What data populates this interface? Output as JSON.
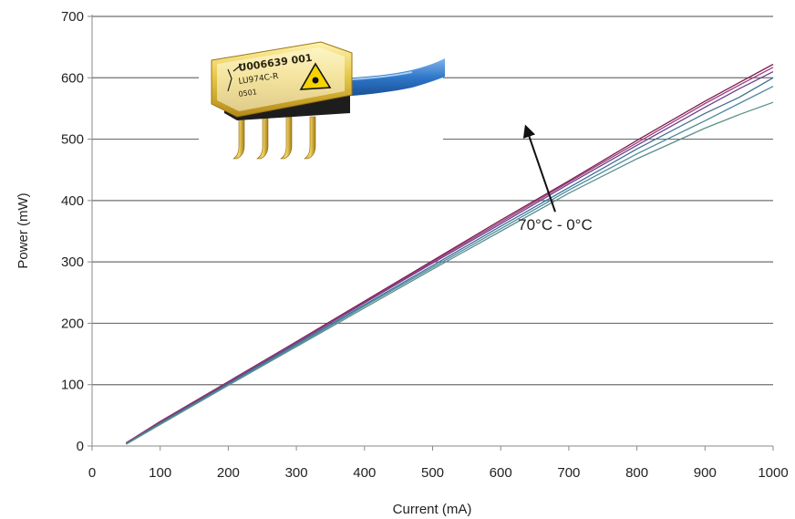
{
  "chart_data": {
    "type": "line",
    "title": "",
    "xlabel": "Current (mA)",
    "ylabel": "Power (mW)",
    "xlim": [
      0,
      1000
    ],
    "ylim": [
      0,
      700
    ],
    "x_ticks": [
      0,
      100,
      200,
      300,
      400,
      500,
      600,
      700,
      800,
      900,
      1000
    ],
    "y_ticks": [
      0,
      100,
      200,
      300,
      400,
      500,
      600,
      700
    ],
    "grid": "horizontal",
    "legend": "none",
    "annotation": {
      "text": "70°C - 0°C",
      "arrow_from": [
        680,
        340
      ],
      "arrow_to": [
        637,
        520
      ]
    },
    "inset_image": {
      "icon": "laser-diode-module-photo",
      "label_lines": [
        "U006639 001",
        "LU974C-R",
        "0501"
      ]
    },
    "series": [
      {
        "color": "#7b1f4a",
        "x": [
          50,
          100,
          200,
          300,
          400,
          500,
          600,
          700,
          800,
          900,
          950,
          1000
        ],
        "y": [
          5,
          40,
          105,
          170,
          236,
          302,
          368,
          432,
          498,
          562,
          592,
          622
        ]
      },
      {
        "color": "#a23a7e",
        "x": [
          50,
          100,
          200,
          300,
          400,
          500,
          600,
          700,
          800,
          900,
          950,
          1000
        ],
        "y": [
          5,
          39,
          104,
          169,
          234,
          300,
          365,
          430,
          494,
          558,
          588,
          617
        ]
      },
      {
        "color": "#6c3f8f",
        "x": [
          50,
          100,
          200,
          300,
          400,
          500,
          600,
          700,
          800,
          900,
          950,
          1000
        ],
        "y": [
          4,
          38,
          103,
          168,
          233,
          298,
          362,
          427,
          490,
          552,
          582,
          610
        ]
      },
      {
        "color": "#3f6f92",
        "x": [
          50,
          100,
          200,
          300,
          400,
          500,
          600,
          700,
          800,
          900,
          950,
          1000
        ],
        "y": [
          4,
          37,
          101,
          166,
          230,
          294,
          358,
          421,
          484,
          542,
          568,
          600
        ]
      },
      {
        "color": "#4c8aa0",
        "x": [
          50,
          100,
          200,
          300,
          400,
          500,
          600,
          700,
          800,
          900,
          950,
          1000
        ],
        "y": [
          3,
          36,
          100,
          164,
          228,
          291,
          354,
          417,
          476,
          530,
          558,
          586
        ]
      },
      {
        "color": "#5a8e88",
        "x": [
          50,
          100,
          200,
          300,
          400,
          500,
          600,
          700,
          800,
          900,
          950,
          1000
        ],
        "y": [
          3,
          35,
          99,
          162,
          225,
          288,
          350,
          412,
          468,
          518,
          540,
          560
        ]
      }
    ]
  }
}
